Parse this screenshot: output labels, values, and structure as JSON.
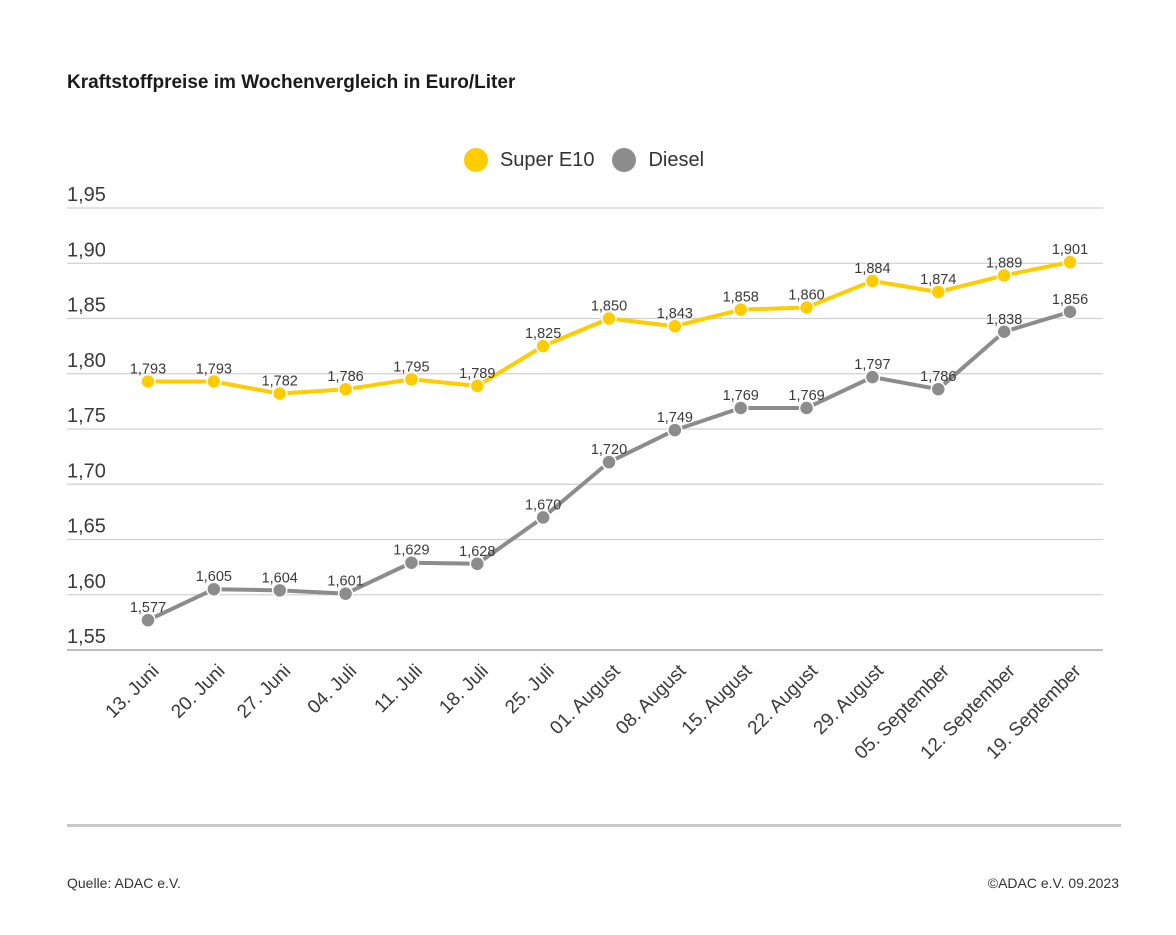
{
  "title": "Kraftstoffpreise im Wochenvergleich in Euro/Liter",
  "footer": {
    "source": "Quelle: ADAC e.V.",
    "copyright": "©ADAC e.V. 09.2023"
  },
  "colors": {
    "super_e10": "#FFCC00",
    "diesel": "#8C8C8C",
    "grid": "#d0d0d0",
    "text": "#333333"
  },
  "chart_data": {
    "type": "line",
    "title": "Kraftstoffpreise im Wochenvergleich in Euro/Liter",
    "xlabel": "",
    "ylabel": "",
    "ylim": [
      1.55,
      1.95
    ],
    "yticks": [
      "1,55",
      "1,60",
      "1,65",
      "1,70",
      "1,75",
      "1,80",
      "1,85",
      "1,90",
      "1,95"
    ],
    "ytick_values": [
      1.55,
      1.6,
      1.65,
      1.7,
      1.75,
      1.8,
      1.85,
      1.9,
      1.95
    ],
    "grid": true,
    "legend_position": "top-center",
    "categories": [
      "13. Juni",
      "20. Juni",
      "27. Juni",
      "04. Juli",
      "11. Juli",
      "18. Juli",
      "25. Juli",
      "01. August",
      "08. August",
      "15. August",
      "22. August",
      "29. August",
      "05. September",
      "12. September",
      "19. September"
    ],
    "series": [
      {
        "name": "Super E10",
        "color": "#FFCC00",
        "values": [
          1.793,
          1.793,
          1.782,
          1.786,
          1.795,
          1.789,
          1.825,
          1.85,
          1.843,
          1.858,
          1.86,
          1.884,
          1.874,
          1.889,
          1.901
        ],
        "labels": [
          "1,793",
          "1,793",
          "1,782",
          "1,786",
          "1,795",
          "1,789",
          "1,825",
          "1,850",
          "1,843",
          "1,858",
          "1,860",
          "1,884",
          "1,874",
          "1,889",
          "1,901"
        ]
      },
      {
        "name": "Diesel",
        "color": "#8C8C8C",
        "values": [
          1.577,
          1.605,
          1.604,
          1.601,
          1.629,
          1.628,
          1.67,
          1.72,
          1.749,
          1.769,
          1.769,
          1.797,
          1.786,
          1.838,
          1.856
        ],
        "labels": [
          "1,577",
          "1,605",
          "1,604",
          "1,601",
          "1,629",
          "1,628",
          "1,670",
          "1,720",
          "1,749",
          "1,769",
          "1,769",
          "1,797",
          "1,786",
          "1,838",
          "1,856"
        ]
      }
    ]
  }
}
